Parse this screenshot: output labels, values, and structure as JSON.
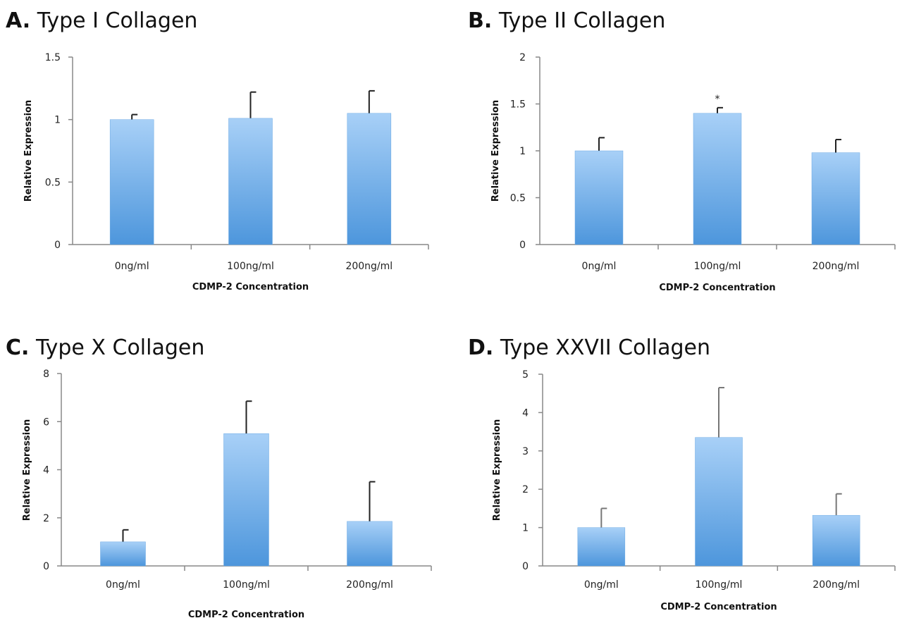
{
  "colors": {
    "bar_top": "#a8d0f7",
    "bar_bottom": "#4d96dc",
    "bar_edge": "#6aa8e3",
    "axis": "#888888",
    "error_bar": "#222222",
    "error_bar_d": "#777777"
  },
  "chart_data": [
    {
      "type": "bar",
      "panel_letter": "A.",
      "title": "Type I Collagen",
      "xlabel": "CDMP-2 Concentration",
      "ylabel": "Relative Expression",
      "categories": [
        "0ng/ml",
        "100ng/ml",
        "200ng/ml"
      ],
      "values": [
        1.0,
        1.01,
        1.05
      ],
      "errors": [
        0.04,
        0.21,
        0.18
      ],
      "annotations": [
        "",
        "",
        ""
      ],
      "ylim": [
        0,
        1.5
      ],
      "yticks": [
        0,
        0.5,
        1,
        1.5
      ],
      "ytick_labels": [
        "0",
        "0.5",
        "1",
        "1.5"
      ],
      "grid": false,
      "legend": "none"
    },
    {
      "type": "bar",
      "panel_letter": "B.",
      "title": "Type II Collagen",
      "xlabel": "CDMP-2 Concentration",
      "ylabel": "Relative Expression",
      "categories": [
        "0ng/ml",
        "100ng/ml",
        "200ng/ml"
      ],
      "values": [
        1.0,
        1.4,
        0.98
      ],
      "errors": [
        0.14,
        0.06,
        0.14
      ],
      "annotations": [
        "",
        "*",
        ""
      ],
      "ylim": [
        0,
        2
      ],
      "yticks": [
        0,
        0.5,
        1,
        1.5,
        2
      ],
      "ytick_labels": [
        "0",
        "0.5",
        "1",
        "1.5",
        "2"
      ],
      "grid": false,
      "legend": "none"
    },
    {
      "type": "bar",
      "panel_letter": "C.",
      "title": "Type X Collagen",
      "xlabel": "CDMP-2 Concentration",
      "ylabel": "Relative Expression",
      "categories": [
        "0ng/ml",
        "100ng/ml",
        "200ng/ml"
      ],
      "values": [
        1.0,
        5.5,
        1.85
      ],
      "errors": [
        0.5,
        1.35,
        1.65
      ],
      "annotations": [
        "",
        "",
        ""
      ],
      "ylim": [
        0,
        8
      ],
      "yticks": [
        0,
        2,
        4,
        6,
        8
      ],
      "ytick_labels": [
        "0",
        "2",
        "4",
        "6",
        "8"
      ],
      "grid": false,
      "legend": "none"
    },
    {
      "type": "bar",
      "panel_letter": "D.",
      "title": "Type XXVII Collagen",
      "xlabel": "CDMP-2 Concentration",
      "ylabel": "Relative Expression",
      "categories": [
        "0ng/ml",
        "100ng/ml",
        "200ng/ml"
      ],
      "values": [
        1.0,
        3.35,
        1.32
      ],
      "errors": [
        0.5,
        1.3,
        0.56
      ],
      "annotations": [
        "",
        "",
        ""
      ],
      "ylim": [
        0,
        5
      ],
      "yticks": [
        0,
        1,
        2,
        3,
        4,
        5
      ],
      "ytick_labels": [
        "0",
        "1",
        "2",
        "3",
        "4",
        "5"
      ],
      "grid": false,
      "legend": "none"
    }
  ]
}
